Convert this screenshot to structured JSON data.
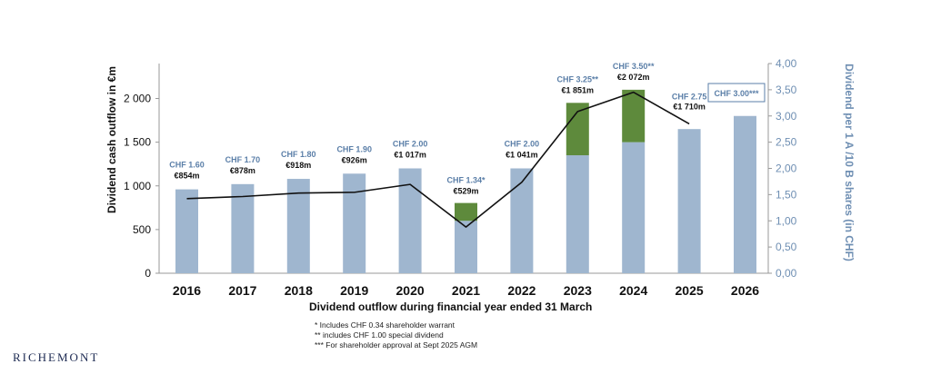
{
  "brand": "RICHEMONT",
  "footnotes": [
    "* Includes CHF 0.34 shareholder warrant",
    "** includes CHF 1.00 special dividend",
    "*** For shareholder approval at Sept 2025 AGM"
  ],
  "colors": {
    "bar_base": "#9fb6cf",
    "bar_special": "#5e8a3c",
    "line": "#111111",
    "chf_label": "#5b7fa8",
    "right_axis": "#6f8fb3"
  },
  "chart_data": {
    "type": "bar",
    "categories": [
      "2016",
      "2017",
      "2018",
      "2019",
      "2020",
      "2021",
      "2022",
      "2023",
      "2024",
      "2025",
      "2026"
    ],
    "xlabel": "Dividend outflow during financial year ended 31 March",
    "ylabel": "Dividend cash outflow in €m",
    "y2label": "Dividend per 1 A /10 B shares (in CHF)",
    "ylim": [
      0,
      2400
    ],
    "y2lim": [
      0,
      4
    ],
    "yticks": [
      "0",
      "500",
      "1 000",
      "1 500",
      "2 000"
    ],
    "y2ticks": [
      "0,00",
      "0,50",
      "1,00",
      "1,50",
      "2,00",
      "2,50",
      "3,00",
      "3,50",
      "4,00"
    ],
    "series": [
      {
        "values": [
          1.6,
          1.7,
          1.8,
          1.9,
          2.0,
          1.0,
          2.0,
          2.25,
          2.5,
          2.75,
          3.0
        ]
      },
      {
        "values": [
          0,
          0,
          0,
          0,
          0,
          0.34,
          0,
          1.0,
          1.0,
          0,
          0
        ]
      },
      {
        "values": [
          854,
          878,
          918,
          926,
          1017,
          529,
          1041,
          1851,
          2072,
          1710,
          null
        ]
      }
    ],
    "chf_labels": [
      "CHF 1.60",
      "CHF 1.70",
      "CHF 1.80",
      "CHF 1.90",
      "CHF 2.00",
      "CHF 1.34*",
      "CHF 2.00",
      "CHF 3.25**",
      "CHF 3.50**",
      "CHF 2.75",
      "CHF 3.00***"
    ],
    "eur_labels": [
      "€854m",
      "€878m",
      "€918m",
      "€926m",
      "€1 017m",
      "€529m",
      "€1 041m",
      "€1 851m",
      "€2 072m",
      "€1 710m",
      ""
    ]
  }
}
